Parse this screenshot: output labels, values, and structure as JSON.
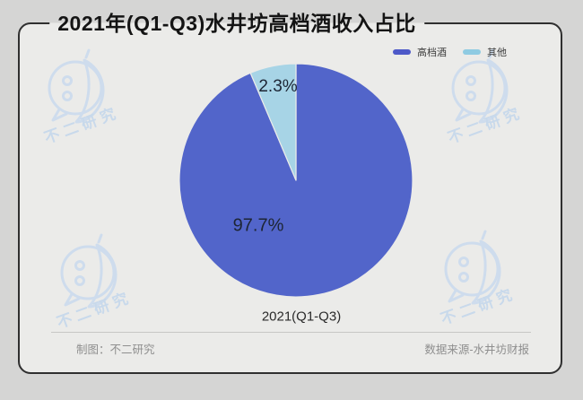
{
  "frame": {
    "title": "2021年(Q1-Q3)水井坊高档酒收入占比"
  },
  "legend": [
    {
      "label": "高档酒",
      "color": "#4d59c8"
    },
    {
      "label": "其他",
      "color": "#8fcbe2"
    }
  ],
  "chart_data": {
    "type": "pie",
    "title": "2021年(Q1-Q3)水井坊高档酒收入占比",
    "categories": [
      "高档酒",
      "其他"
    ],
    "values": [
      97.7,
      2.3
    ],
    "slices": [
      {
        "name": "高档酒",
        "value": 97.7,
        "label": "97.7%",
        "color": "#5265ca"
      },
      {
        "name": "其他",
        "value": 2.3,
        "label": "2.3%",
        "color": "#a7d4e6"
      }
    ],
    "xlabel": "2021(Q1-Q3)",
    "legend_position": "top-right",
    "start_angle": "top",
    "direction": "clockwise",
    "other_slice_display_deg": 23
  },
  "footer": {
    "left": "制图：不二研究",
    "right": "数据来源-水井坊财报"
  },
  "watermark": {
    "text": "不二研究",
    "color": "#c7d8ec"
  }
}
